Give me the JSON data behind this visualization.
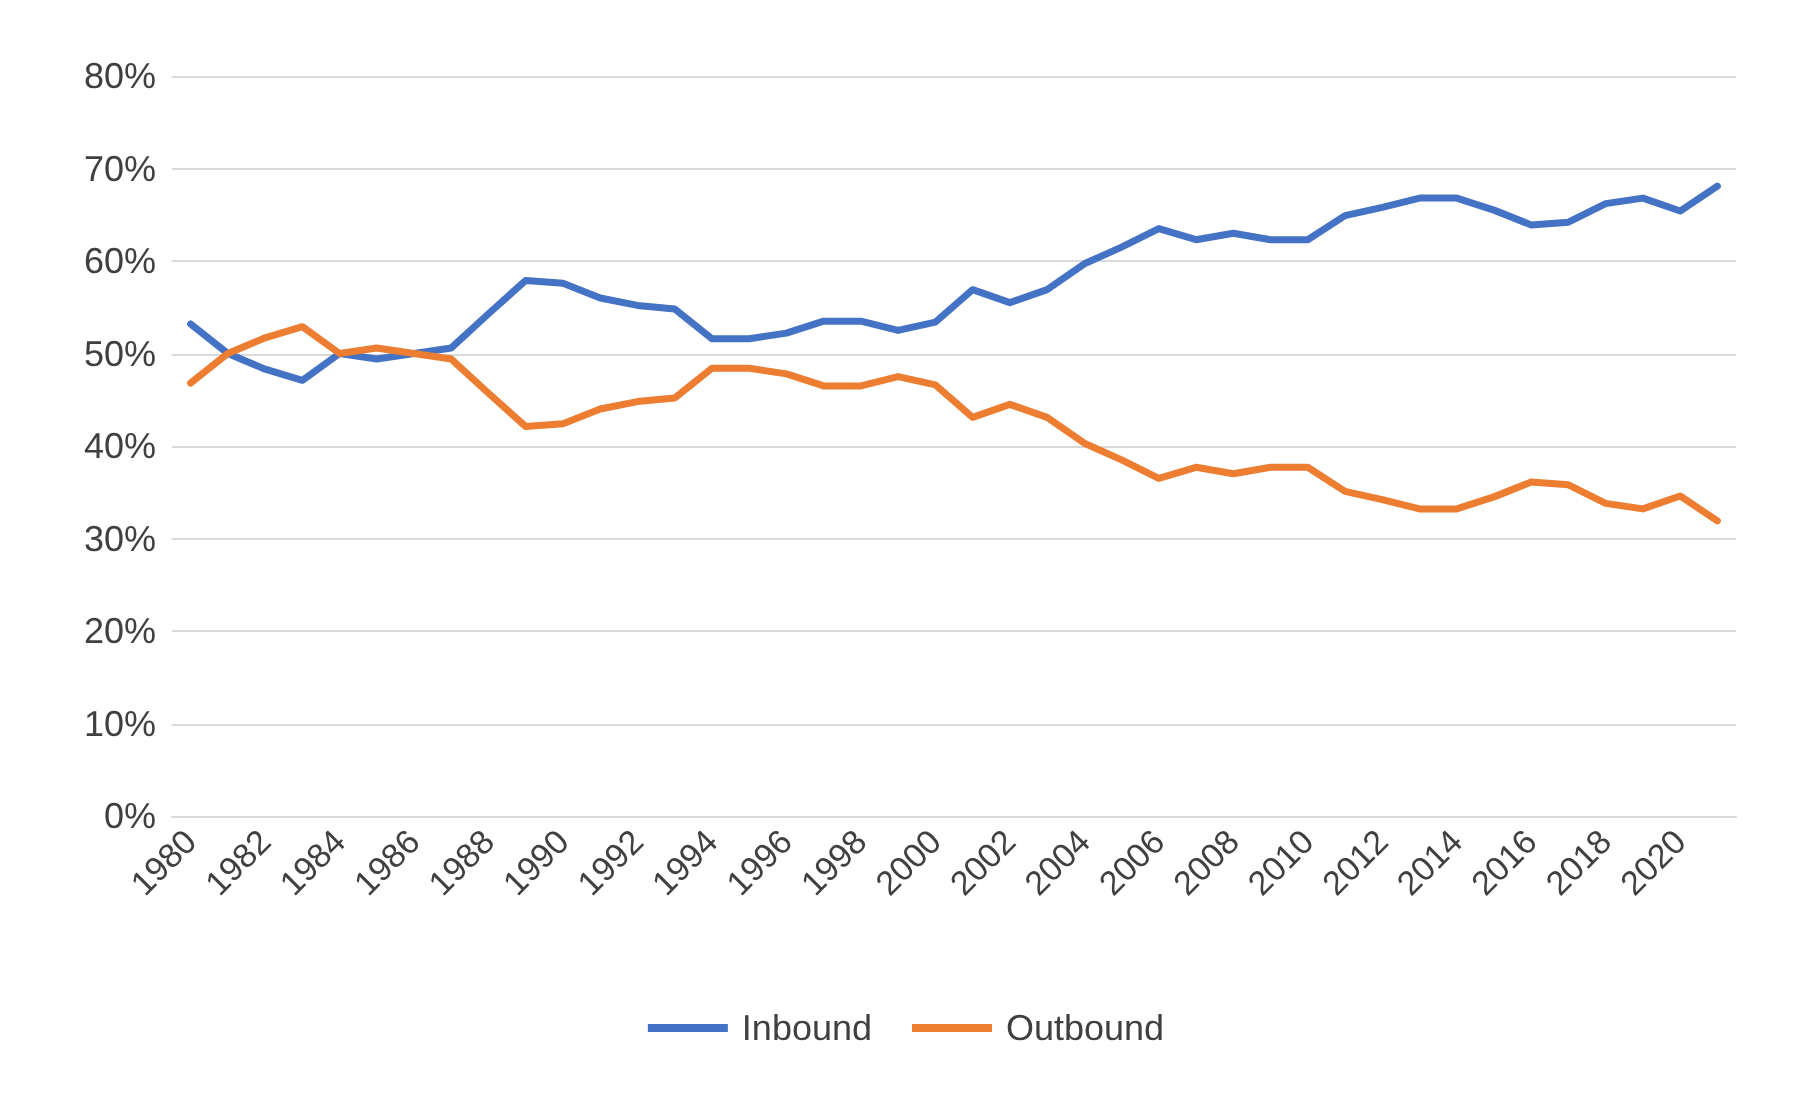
{
  "chart_data": {
    "type": "line",
    "categories": [
      "1980",
      null,
      "1982",
      null,
      "1984",
      null,
      "1986",
      null,
      "1988",
      null,
      "1990",
      null,
      "1992",
      null,
      "1994",
      null,
      "1996",
      null,
      "1998",
      null,
      "2000",
      null,
      "2002",
      null,
      "2004",
      null,
      "2006",
      null,
      "2008",
      null,
      "2010",
      null,
      "2012",
      null,
      "2014",
      null,
      "2016",
      null,
      "2018",
      null,
      "2020",
      null
    ],
    "series": [
      {
        "name": "Inbound",
        "color": "#4472c4",
        "values": [
          53.2,
          50,
          48.3,
          47.1,
          50,
          49.4,
          50,
          50.6,
          54.3,
          57.9,
          57.6,
          56,
          55.2,
          54.8,
          51.6,
          51.6,
          52.2,
          53.5,
          53.5,
          52.5,
          53.4,
          56.9,
          55.5,
          56.9,
          59.7,
          61.5,
          63.5,
          62.3,
          63,
          62.3,
          62.3,
          64.9,
          65.8,
          66.8,
          66.8,
          65.5,
          63.9,
          64.2,
          66.2,
          66.8,
          65.4,
          68.1
        ]
      },
      {
        "name": "Outbound",
        "color": "#ed7d31",
        "values": [
          46.8,
          50,
          51.7,
          52.9,
          50,
          50.6,
          50,
          49.4,
          45.7,
          42.1,
          42.4,
          44,
          44.8,
          45.2,
          48.4,
          48.4,
          47.8,
          46.5,
          46.5,
          47.5,
          46.6,
          43.1,
          44.5,
          43.1,
          40.3,
          38.5,
          36.5,
          37.7,
          37,
          37.7,
          37.7,
          35.1,
          34.2,
          33.2,
          33.2,
          34.5,
          36.1,
          35.8,
          33.8,
          33.2,
          34.6,
          31.9
        ]
      }
    ],
    "ylim": [
      0,
      80
    ],
    "yticks": [
      {
        "value": 0,
        "label": "0%"
      },
      {
        "value": 10,
        "label": "10%"
      },
      {
        "value": 20,
        "label": "20%"
      },
      {
        "value": 30,
        "label": "30%"
      },
      {
        "value": 40,
        "label": "40%"
      },
      {
        "value": 50,
        "label": "50%"
      },
      {
        "value": 60,
        "label": "60%"
      },
      {
        "value": 70,
        "label": "70%"
      },
      {
        "value": 80,
        "label": "80%"
      }
    ],
    "grid": "y",
    "legend": "bottom",
    "marker": "none",
    "line_style": "solid"
  }
}
